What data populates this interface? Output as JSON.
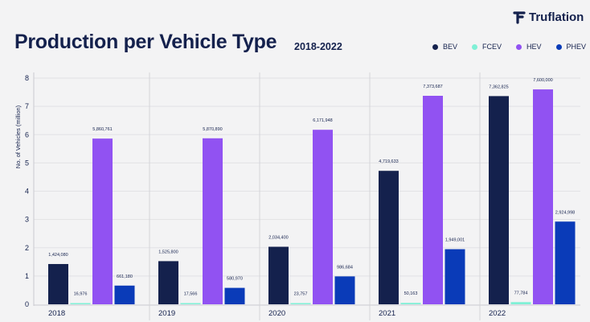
{
  "brand": {
    "name": "Truflation"
  },
  "chart_data": {
    "type": "bar",
    "title": "Production per Vehicle Type",
    "subtitle": "2018-2022",
    "xlabel": "",
    "ylabel": "No. of Vehicles (million)",
    "ylim": [
      0,
      8
    ],
    "yticks": [
      0,
      1,
      2,
      3,
      4,
      5,
      6,
      7,
      8
    ],
    "grid": true,
    "legend_position": "top-right",
    "categories": [
      "2018",
      "2019",
      "2020",
      "2021",
      "2022"
    ],
    "series": [
      {
        "name": "BEV",
        "color": "#14214d",
        "values": [
          1424080,
          1525800,
          2034400,
          4719633,
          7362825
        ],
        "labels": [
          "1,424,080",
          "1,525,800",
          "2,034,400",
          "4,719,633",
          "7,362,825"
        ]
      },
      {
        "name": "FCEV",
        "color": "#7ff0d6",
        "values": [
          16976,
          17566,
          23757,
          50163,
          77784
        ],
        "labels": [
          "16,976",
          "17,566",
          "23,757",
          "50,163",
          "77,784"
        ]
      },
      {
        "name": "HEV",
        "color": "#9152f2",
        "values": [
          5860761,
          5870890,
          6171948,
          7373687,
          7600000
        ],
        "labels": [
          "5,860,761",
          "5,870,890",
          "6,171,948",
          "7,373,687",
          "7,600,000"
        ]
      },
      {
        "name": "PHEV",
        "color": "#0a3bb8",
        "values": [
          661180,
          580970,
          986684,
          1949001,
          2924998
        ],
        "labels": [
          "661,180",
          "580,970",
          "986,684",
          "1,949,001",
          "2,924,998"
        ]
      }
    ]
  }
}
